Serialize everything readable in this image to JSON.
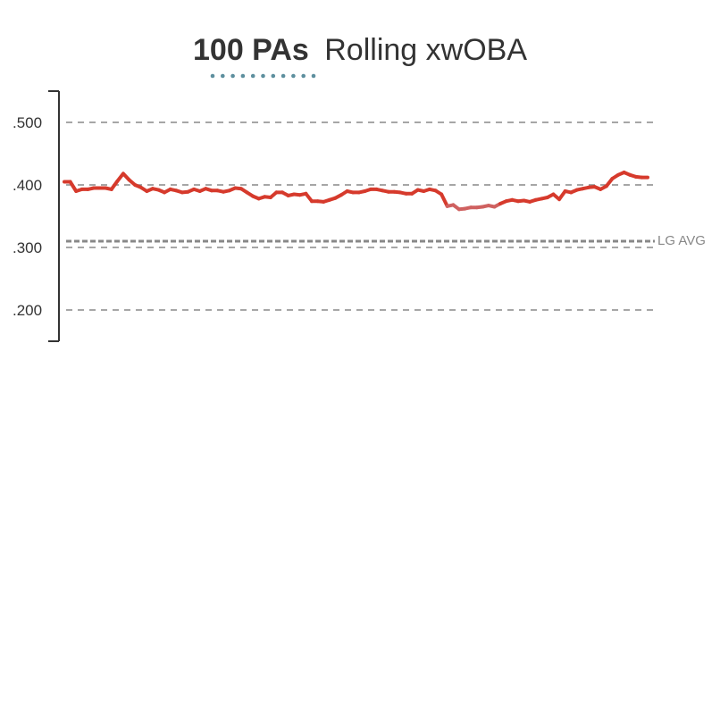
{
  "title": {
    "bold": "100 PAs",
    "regular": "Rolling xwOBA"
  },
  "lg_avg_label": "LG AVG",
  "colors": {
    "line_primary": "#d63a2c",
    "line_faded": "#cf6160",
    "grid": "#888888",
    "lg_avg": "#888888",
    "axis": "#333333",
    "title_dots": "#5d8f9e"
  },
  "chart_data": {
    "type": "line",
    "title": "100 PAs Rolling xwOBA",
    "xlabel": "",
    "ylabel": "",
    "ylim": [
      0.15,
      0.55
    ],
    "yticks": [
      0.2,
      0.3,
      0.4,
      0.5
    ],
    "ytick_labels": [
      ".200",
      ".300",
      ".400",
      ".500"
    ],
    "grid": "horizontal dashed",
    "reference_lines": [
      {
        "label": "LG AVG",
        "value": 0.31
      }
    ],
    "series": [
      {
        "values": [
          0.405,
          0.405,
          0.39,
          0.393,
          0.393,
          0.395,
          0.395,
          0.395,
          0.393,
          0.406,
          0.418,
          0.408,
          0.4,
          0.396,
          0.39,
          0.394,
          0.392,
          0.388,
          0.393,
          0.391,
          0.388,
          0.389,
          0.393,
          0.39,
          0.394,
          0.391,
          0.391,
          0.389,
          0.391,
          0.395,
          0.394,
          0.388,
          0.382,
          0.378,
          0.381,
          0.38,
          0.388,
          0.388,
          0.383,
          0.385,
          0.384,
          0.386,
          0.374,
          0.374,
          0.373,
          0.376,
          0.379,
          0.384,
          0.39,
          0.388,
          0.388,
          0.39,
          0.393,
          0.393,
          0.391,
          0.389,
          0.389,
          0.388,
          0.386,
          0.386,
          0.392,
          0.39,
          0.393,
          0.391,
          0.385,
          0.366,
          0.368,
          0.361,
          0.362,
          0.364,
          0.364,
          0.365,
          0.367,
          0.365,
          0.37,
          0.374,
          0.376,
          0.374,
          0.375,
          0.373,
          0.376,
          0.378,
          0.38,
          0.385,
          0.377,
          0.39,
          0.388,
          0.392,
          0.394,
          0.396,
          0.397,
          0.393,
          0.398,
          0.41,
          0.416,
          0.42,
          0.416,
          0.413,
          0.412,
          0.412
        ]
      }
    ]
  }
}
